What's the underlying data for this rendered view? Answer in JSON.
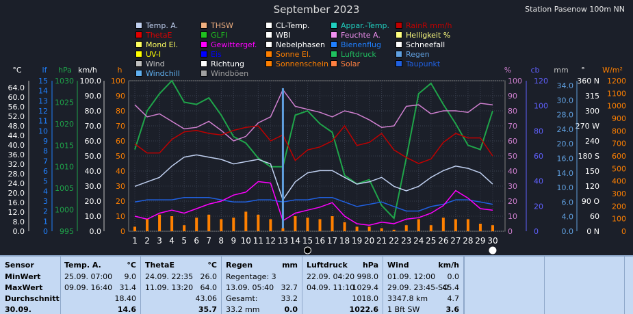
{
  "header": {
    "title": "September 2023",
    "station": "Station Pasenow 100m NN"
  },
  "legend": [
    {
      "label": "Temp. A.",
      "color": "#c0d0f0"
    },
    {
      "label": "THSW",
      "color": "#f0b080"
    },
    {
      "label": "CL-Temp.",
      "color": "#ffffff"
    },
    {
      "label": "Appar.-Temp.",
      "color": "#20d0c0"
    },
    {
      "label": "RainR mm/h",
      "color": "#c00000"
    },
    {
      "label": "ThetaE",
      "color": "#e00000"
    },
    {
      "label": "GLFI",
      "color": "#20c020"
    },
    {
      "label": "WBI",
      "color": "#ffffff"
    },
    {
      "label": "Feuchte A.",
      "color": "#f090f0"
    },
    {
      "label": "Helligkeit %",
      "color": "#ffff80"
    },
    {
      "label": "Mond El.",
      "color": "#ffff60"
    },
    {
      "label": "Gewittergef.",
      "color": "#ff00ff"
    },
    {
      "label": "Nebelphasen",
      "color": "#ffffff"
    },
    {
      "label": "Bienenflug",
      "color": "#2080ff"
    },
    {
      "label": "Schneefall",
      "color": "#ffffff"
    },
    {
      "label": "UV-I",
      "color": "#ffff00"
    },
    {
      "label": "Eis",
      "color": "#0000ff"
    },
    {
      "label": "Sonne El.",
      "color": "#ff8000"
    },
    {
      "label": "Luftdruck",
      "color": "#20c060"
    },
    {
      "label": "Regen",
      "color": "#60a0e0"
    },
    {
      "label": "Wind",
      "color": "#c0c0c0"
    },
    {
      "label": "Richtung",
      "color": "#ffffff"
    },
    {
      "label": "Sonnenschein",
      "color": "#ff8000"
    },
    {
      "label": "Solar",
      "color": "#ff8040"
    },
    {
      "label": "Taupunkt",
      "color": "#2060e0"
    },
    {
      "label": "Windchill",
      "color": "#60b0f0"
    },
    {
      "label": "Windböen",
      "color": "#a0a0a0"
    }
  ],
  "axes": {
    "unit_labels": [
      "°C",
      "lf",
      "hPa",
      "km/h",
      "h",
      "%",
      "cb",
      "mm",
      "°",
      "W/m²"
    ],
    "temp": [
      "64.0",
      "60.0",
      "56.0",
      "52.0",
      "48.0",
      "44.0",
      "40.0",
      "36.0",
      "32.0",
      "28.0",
      "24.0",
      "20.0",
      "16.0",
      "12.0",
      "8.0",
      "0.0"
    ],
    "lf": [
      "15",
      "14",
      "13",
      "12",
      "11",
      "10",
      "9",
      "8",
      "7",
      "6",
      "5",
      "4",
      "3",
      "2",
      "1",
      "0"
    ],
    "hpa": [
      "1030",
      "1025",
      "1020",
      "1015",
      "1010",
      "1005",
      "1000",
      "995"
    ],
    "kmh": [
      "100.0",
      "90.0",
      "80.0",
      "70.0",
      "60.0",
      "50.0",
      "40.0",
      "30.0",
      "20.0",
      "10.0",
      "0.0"
    ],
    "h": [
      "100",
      "90",
      "80",
      "70",
      "60",
      "50",
      "40",
      "30",
      "20",
      "10",
      "0"
    ],
    "pct": [
      "100",
      "90",
      "80",
      "70",
      "60",
      "50",
      "40",
      "30",
      "20",
      "10",
      "0"
    ],
    "cb": [
      "120",
      "100",
      "80",
      "60",
      "40",
      "20",
      "0"
    ],
    "mm": [
      "34.0",
      "30.0",
      "28.0",
      "24.0",
      "20.0",
      "16.0",
      "14.0",
      "10.0",
      "6.0",
      "4.0",
      "0.0"
    ],
    "deg": [
      "360 N",
      "315",
      "300",
      "270 W",
      "240",
      "180 S",
      "150",
      "120",
      "90 O",
      "60",
      "0 N"
    ],
    "wm2": [
      "1200",
      "1100",
      "1000",
      "900",
      "800",
      "700",
      "600",
      "500",
      "400",
      "300",
      "200",
      "100",
      "0"
    ],
    "days": [
      "1",
      "2",
      "3",
      "4",
      "5",
      "6",
      "7",
      "8",
      "9",
      "10",
      "11",
      "12",
      "13",
      "14",
      "15",
      "16",
      "17",
      "18",
      "19",
      "20",
      "21",
      "22",
      "23",
      "24",
      "25",
      "26",
      "27",
      "28",
      "29",
      "30"
    ]
  },
  "chart_data": {
    "type": "line",
    "title": "September 2023",
    "x": [
      1,
      2,
      3,
      4,
      5,
      6,
      7,
      8,
      9,
      10,
      11,
      12,
      13,
      14,
      15,
      16,
      17,
      18,
      19,
      20,
      21,
      22,
      23,
      24,
      25,
      26,
      27,
      28,
      29,
      30
    ],
    "series": [
      {
        "name": "Luftdruck",
        "color": "#1fa54a",
        "values": [
          1014,
          1023,
          1027,
          1030,
          1025,
          1024.5,
          1026,
          1022,
          1017,
          1015.5,
          1012,
          1010,
          1010,
          1022,
          1023,
          1020,
          1018,
          1008,
          1006,
          1007,
          1001,
          998,
          1012,
          1027,
          1029.4,
          1024.5,
          1020,
          1015,
          1014,
          1023
        ]
      },
      {
        "name": "Feuchte A.",
        "color": "#d080d0",
        "values": [
          84,
          76,
          78,
          73,
          68,
          69,
          73,
          67,
          60,
          63,
          72,
          76,
          94,
          83,
          81,
          79,
          76,
          80,
          78,
          74,
          69,
          70,
          83,
          84,
          78,
          80,
          80,
          79,
          85,
          84
        ]
      },
      {
        "name": "ThetaE",
        "color": "#c00000",
        "values": [
          58,
          52,
          52,
          61,
          66,
          67,
          65,
          64,
          67,
          69,
          70,
          60,
          64,
          47,
          54,
          56,
          60,
          70,
          57,
          59,
          65,
          54,
          49,
          45,
          48,
          59,
          65,
          62,
          62,
          50
        ]
      },
      {
        "name": "Temp. A.",
        "color": "#c0d0f0",
        "values": [
          20,
          22,
          24,
          29,
          33,
          34,
          33,
          32,
          30,
          31,
          32,
          30,
          14,
          22,
          26,
          27,
          27,
          24,
          21,
          22,
          24,
          20,
          18,
          20,
          24,
          27,
          29,
          28,
          26,
          21
        ]
      },
      {
        "name": "Taupunkt",
        "color": "#2060e0",
        "values": [
          13,
          14,
          14,
          14,
          15,
          15,
          15,
          14,
          13,
          13,
          14,
          14,
          13,
          14,
          14,
          15,
          15,
          13,
          11,
          12,
          13,
          11,
          9,
          9,
          11,
          12,
          14,
          14,
          13,
          12
        ]
      },
      {
        "name": "Gewittergef.",
        "color": "#ff00ff",
        "values": [
          10,
          8,
          12,
          14,
          12,
          15,
          18,
          20,
          24,
          26,
          33,
          32,
          7,
          12,
          14,
          16,
          19,
          10,
          5,
          4,
          6,
          5,
          8,
          9,
          12,
          17,
          27,
          22,
          15,
          14
        ]
      },
      {
        "name": "Regen",
        "color": "#60a0e0",
        "values": [
          0,
          0,
          0,
          0,
          0,
          0,
          0,
          0,
          0,
          0,
          0,
          0,
          95,
          0,
          0,
          0,
          0,
          0,
          0,
          0,
          0,
          0,
          0,
          0,
          0,
          0,
          0,
          0,
          0,
          0
        ]
      },
      {
        "name": "Sonnenschein",
        "color": "#ff8000",
        "values": [
          3,
          8,
          11,
          10,
          4,
          9,
          11,
          8,
          9,
          13,
          11,
          8,
          2,
          10,
          9,
          8,
          10,
          6,
          3,
          3,
          2,
          1,
          4,
          8,
          4,
          9,
          8,
          8,
          5,
          4
        ]
      }
    ],
    "ylim": [
      0,
      100
    ],
    "xlabel": "",
    "ylabel": ""
  },
  "table": {
    "sensor": {
      "head": "Sensor",
      "rows": [
        "MinWert",
        "MaxWert",
        "Durchschnitt",
        "30.09."
      ]
    },
    "temp": {
      "head": "Temp. A.",
      "unit": "°C",
      "rows": [
        [
          "25.09.  07:00",
          "9.0"
        ],
        [
          "09.09.  16:40",
          "31.4"
        ],
        [
          "",
          "18.40"
        ],
        [
          "",
          "14.6"
        ]
      ]
    },
    "theta": {
      "head": "ThetaE",
      "unit": "°C",
      "rows": [
        [
          "24.09.  22:35",
          "26.0"
        ],
        [
          "11.09.  13:20",
          "64.0"
        ],
        [
          "",
          "43.06"
        ],
        [
          "",
          "35.7"
        ]
      ]
    },
    "regen": {
      "head": "Regen",
      "unit": "mm",
      "rows": [
        [
          "Regentage: 3",
          ""
        ],
        [
          "13.09.  05:40",
          "32.7"
        ],
        [
          "Gesamt:",
          "33.2"
        ],
        [
          "33.2 mm",
          "0.0"
        ]
      ]
    },
    "druck": {
      "head": "Luftdruck",
      "unit": "hPa",
      "rows": [
        [
          "22.09.  04:20",
          "998.0"
        ],
        [
          "04.09.  11:10",
          "1029.4"
        ],
        [
          "",
          "1018.0"
        ],
        [
          "",
          "1022.6"
        ]
      ]
    },
    "wind": {
      "head": "Wind",
      "unit": "km/h",
      "rows": [
        [
          "01.09.  12:00",
          "0.0"
        ],
        [
          "29.09.  23:45-SO",
          "45.4"
        ],
        [
          "3347.8 km",
          "4.7"
        ],
        [
          "1 Bft SW",
          "3.6"
        ]
      ]
    }
  }
}
